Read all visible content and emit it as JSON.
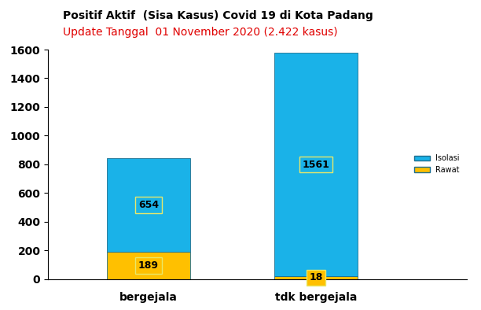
{
  "chart_data": {
    "type": "bar",
    "title": "Positif Aktif  (Sisa Kasus) Covid 19 di Kota Padang",
    "subtitle": "Update Tanggal  01 November 2020 (2.422 kasus)",
    "categories": [
      "bergejala",
      "tdk bergejala"
    ],
    "series": [
      {
        "name": "Rawat",
        "color": "#FFC000",
        "values": [
          189,
          18
        ]
      },
      {
        "name": "Isolasi",
        "color": "#1AB2E8",
        "values": [
          654,
          1561
        ]
      }
    ],
    "stacked": true,
    "data_labels": true,
    "legend": "center right",
    "grid": false,
    "ylim": [
      0,
      1600
    ],
    "yticks": [
      0,
      200,
      400,
      600,
      800,
      1000,
      1200,
      1400,
      1600
    ]
  }
}
